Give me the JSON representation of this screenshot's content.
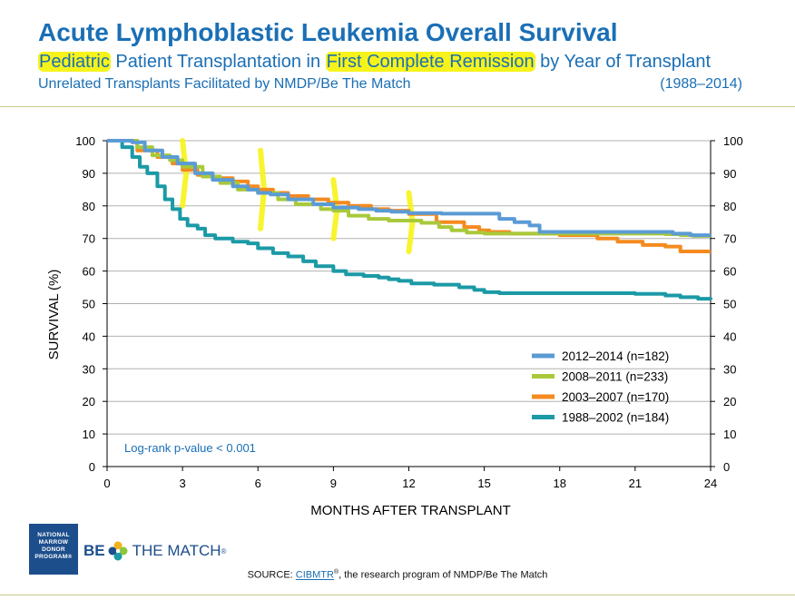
{
  "header": {
    "title": "Acute Lymphoblastic Leukemia Overall Survival",
    "subtitle": {
      "part1": "Pediatric",
      "part2": " Patient Transplantation in ",
      "part3": "First Complete Remission",
      "part4": " by Year of Transplant"
    },
    "subtitle2_left": "Unrelated Transplants Facilitated by NMDP/Be The Match",
    "subtitle2_right": "(1988–2014)"
  },
  "colors": {
    "title": "#1a6fb5",
    "highlight": "#f7f31a",
    "grid": "#b0b0b0",
    "axis": "#000000"
  },
  "chart_data": {
    "type": "line",
    "title": "Acute Lymphoblastic Leukemia Overall Survival",
    "xlabel": "MONTHS AFTER TRANSPLANT",
    "ylabel": "SURVIVAL (%)",
    "xlim": [
      0,
      24
    ],
    "ylim": [
      0,
      100
    ],
    "xticks": [
      0,
      3,
      6,
      9,
      12,
      15,
      18,
      21,
      24
    ],
    "yticks": [
      0,
      10,
      20,
      30,
      40,
      50,
      60,
      70,
      80,
      90,
      100
    ],
    "grid": true,
    "legend_position": "bottom-right",
    "annotation": "Log-rank p-value < 0.001",
    "series": [
      {
        "name": "2012–2014 (n=182)",
        "color": "#5b9bd5",
        "x": [
          0,
          1,
          1.5,
          2.2,
          2.8,
          3.5,
          4.2,
          5,
          5.6,
          6,
          6.5,
          7.2,
          8.2,
          9,
          10,
          10.7,
          11.3,
          12,
          13.3,
          14.5,
          15.6,
          16.2,
          16.8,
          17.2,
          21,
          22.2,
          22.5,
          23.2,
          24
        ],
        "y": [
          100,
          99.5,
          97,
          95,
          93,
          90,
          88,
          86,
          85,
          84,
          83.5,
          82,
          80.5,
          79.5,
          79,
          78.5,
          78.2,
          77.8,
          77.6,
          77.6,
          76,
          75,
          74,
          72,
          72,
          72,
          71.5,
          71,
          71
        ]
      },
      {
        "name": "2008–2011 (n=233)",
        "color": "#a9c93b",
        "x": [
          0,
          1.2,
          1.8,
          2.5,
          3,
          3.8,
          4.5,
          5.2,
          6,
          6.8,
          7.5,
          8.5,
          9,
          9.6,
          10.4,
          11.2,
          12.5,
          13.2,
          13.7,
          14.3,
          15,
          17,
          21,
          22.2,
          22.8,
          23.3,
          24
        ],
        "y": [
          100,
          98,
          95.5,
          94,
          92,
          89,
          87,
          85,
          84,
          82,
          80.5,
          79,
          78.5,
          77,
          76,
          75.5,
          74.8,
          73.5,
          72.5,
          71.8,
          71.5,
          71.5,
          71.5,
          71.3,
          71,
          70.8,
          70.8
        ]
      },
      {
        "name": "2003–2007 (n=170)",
        "color": "#f58a1f",
        "x": [
          0,
          1.2,
          2,
          2.6,
          3,
          3.6,
          4.2,
          5,
          5.6,
          6,
          6.6,
          7.2,
          8,
          8.8,
          9.6,
          10.5,
          11.2,
          12,
          13.1,
          14.2,
          14.8,
          15.2,
          16,
          18,
          19,
          19.5,
          20.3,
          21.3,
          22.2,
          22.8,
          24
        ],
        "y": [
          100,
          97,
          95,
          93,
          91,
          89.5,
          88.5,
          87.5,
          86,
          85,
          84,
          83,
          82,
          81,
          80,
          79,
          78.5,
          77.5,
          75,
          73.5,
          72.5,
          72,
          71.5,
          71,
          71,
          70,
          69,
          68,
          67.5,
          66,
          66
        ]
      },
      {
        "name": "1988–2002 (n=184)",
        "color": "#1b9aa6",
        "x": [
          0,
          0.6,
          1,
          1.3,
          1.6,
          2,
          2.3,
          2.6,
          2.9,
          3.2,
          3.6,
          3.9,
          4.3,
          5,
          5.6,
          6,
          6.6,
          7.2,
          7.8,
          8.3,
          9,
          9.5,
          10.2,
          10.8,
          11.2,
          11.6,
          12.1,
          13,
          14,
          14.6,
          15,
          15.6,
          17,
          21,
          22.2,
          22.8,
          23.5,
          24
        ],
        "y": [
          100,
          98,
          95,
          92,
          90,
          86,
          82,
          79,
          76,
          74,
          73,
          71,
          70,
          69,
          68.5,
          67,
          65.5,
          64.5,
          63,
          61.5,
          60,
          59,
          58.5,
          58,
          57.5,
          57,
          56.2,
          55.8,
          55,
          54.2,
          53.5,
          53.2,
          53.2,
          53,
          52.5,
          52,
          51.5,
          51.2
        ]
      }
    ]
  },
  "footer": {
    "logo_nmdp": "NATIONAL MARROW DONOR PROGRAM®",
    "logo_btm_be": "BE",
    "logo_btm_the_match": "THE MATCH",
    "logo_btm_reg": "®",
    "source_prefix": "SOURCE: ",
    "source_link": "CIBMTR",
    "source_reg": "®",
    "source_suffix": ", the research program of NMDP/Be The Match"
  }
}
